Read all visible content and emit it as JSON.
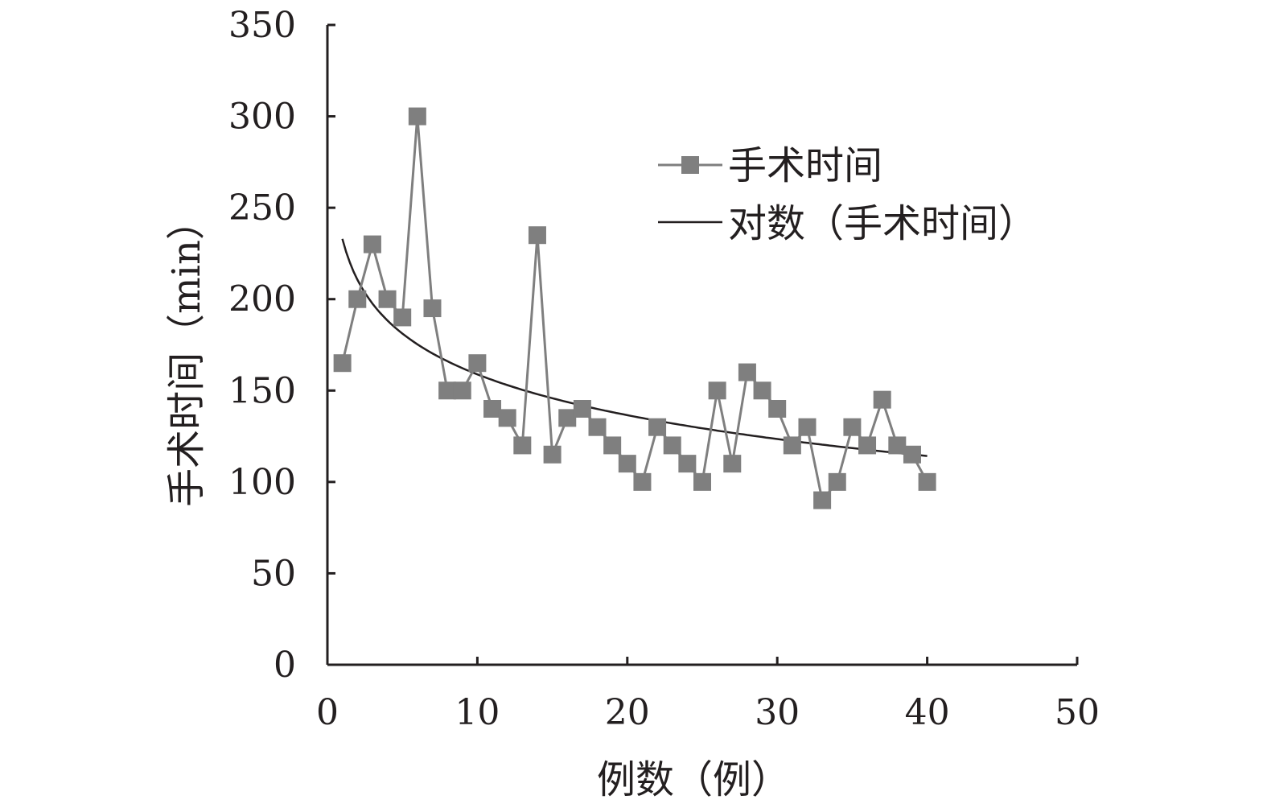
{
  "chart_data": {
    "type": "line",
    "title": "",
    "xlabel": "例数（例）",
    "ylabel": "手术时间（min）",
    "xlim": [
      0,
      50
    ],
    "ylim": [
      0,
      350
    ],
    "xticks": [
      "0",
      "10",
      "20",
      "30",
      "40",
      "50"
    ],
    "yticks": [
      "0",
      "50",
      "100",
      "150",
      "200",
      "250",
      "300",
      "350"
    ],
    "grid": false,
    "legend_position": "top-right",
    "series": [
      {
        "name": "手术时间",
        "kind": "line-with-square-markers",
        "color": "#7f7f7f",
        "x": [
          1,
          2,
          3,
          4,
          5,
          6,
          7,
          8,
          9,
          10,
          11,
          12,
          13,
          14,
          15,
          16,
          17,
          18,
          19,
          20,
          21,
          22,
          23,
          24,
          25,
          26,
          27,
          28,
          29,
          30,
          31,
          32,
          33,
          34,
          35,
          36,
          37,
          38,
          39,
          40
        ],
        "values": [
          165,
          200,
          230,
          200,
          190,
          300,
          195,
          150,
          150,
          165,
          140,
          135,
          120,
          235,
          115,
          135,
          140,
          130,
          120,
          110,
          100,
          130,
          120,
          110,
          100,
          150,
          110,
          160,
          150,
          140,
          120,
          130,
          90,
          100,
          130,
          120,
          145,
          120,
          115,
          100
        ]
      },
      {
        "name": "对数（手术时间）",
        "kind": "logarithmic-trendline",
        "color": "#231f20",
        "x_range": [
          1,
          40
        ],
        "intercept": 233,
        "slope": -32.2
      }
    ]
  }
}
